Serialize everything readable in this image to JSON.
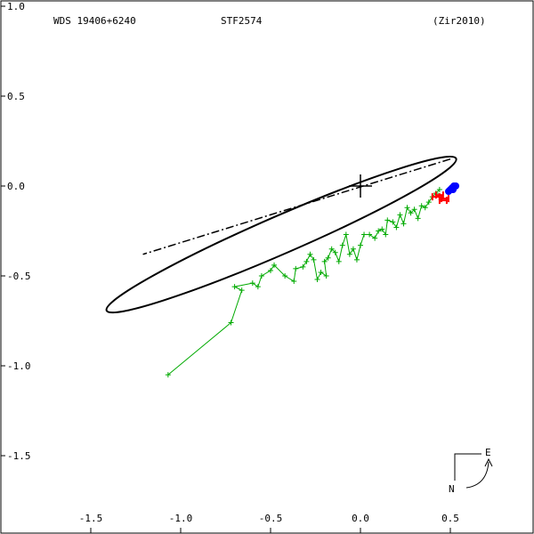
{
  "header": {
    "left": "WDS 19406+6240",
    "center": "STF2574",
    "right": "(Zir2010)"
  },
  "compass": {
    "east": "E",
    "north": "N"
  },
  "colors": {
    "orbit": "#000000",
    "observations": "#00aa00",
    "speckle": "#ff0000",
    "ephemeris": "#0000ff"
  },
  "chart_data": {
    "type": "scatter",
    "title": "",
    "xlabel": "",
    "ylabel": "",
    "xlim": [
      -1.95,
      0.95
    ],
    "ylim": [
      1.0,
      -1.95
    ],
    "xticks": [
      -1.5,
      -1.0,
      -0.5,
      0.0,
      0.5
    ],
    "xtick_labels": [
      "-1.5",
      "-1.0",
      "-0.5",
      "0.0",
      "0.5"
    ],
    "yticks": [
      -1.0,
      -0.5,
      0.0,
      0.5,
      1.0,
      1.5
    ],
    "ytick_labels": [
      "1.0",
      "0.5",
      "0.0",
      "-0.5",
      "-1.0",
      "-1.5"
    ],
    "grid": false,
    "orbit_ellipse": {
      "center": [
        -0.44,
        0.27
      ],
      "semi_major": 1.06,
      "semi_minor": 0.105,
      "rotation_deg": 23.5
    },
    "line_of_nodes": [
      [
        0.5,
        -0.15
      ],
      [
        -1.21,
        0.38
      ]
    ],
    "primary": [
      0.0,
      0.0
    ],
    "observations": [
      [
        -1.07,
        1.05
      ],
      [
        -0.72,
        0.76
      ],
      [
        -0.66,
        0.58
      ],
      [
        -0.7,
        0.56
      ],
      [
        -0.6,
        0.54
      ],
      [
        -0.57,
        0.56
      ],
      [
        -0.55,
        0.5
      ],
      [
        -0.5,
        0.47
      ],
      [
        -0.48,
        0.44
      ],
      [
        -0.42,
        0.5
      ],
      [
        -0.37,
        0.53
      ],
      [
        -0.36,
        0.46
      ],
      [
        -0.32,
        0.45
      ],
      [
        -0.3,
        0.42
      ],
      [
        -0.28,
        0.38
      ],
      [
        -0.26,
        0.41
      ],
      [
        -0.24,
        0.52
      ],
      [
        -0.22,
        0.48
      ],
      [
        -0.19,
        0.5
      ],
      [
        -0.2,
        0.42
      ],
      [
        -0.18,
        0.4
      ],
      [
        -0.16,
        0.35
      ],
      [
        -0.14,
        0.37
      ],
      [
        -0.12,
        0.42
      ],
      [
        -0.1,
        0.33
      ],
      [
        -0.08,
        0.27
      ],
      [
        -0.06,
        0.38
      ],
      [
        -0.04,
        0.35
      ],
      [
        -0.02,
        0.41
      ],
      [
        0.0,
        0.33
      ],
      [
        0.02,
        0.27
      ],
      [
        0.05,
        0.27
      ],
      [
        0.08,
        0.29
      ],
      [
        0.1,
        0.25
      ],
      [
        0.12,
        0.24
      ],
      [
        0.14,
        0.27
      ],
      [
        0.15,
        0.19
      ],
      [
        0.18,
        0.2
      ],
      [
        0.2,
        0.23
      ],
      [
        0.22,
        0.16
      ],
      [
        0.24,
        0.21
      ],
      [
        0.26,
        0.12
      ],
      [
        0.28,
        0.15
      ],
      [
        0.3,
        0.13
      ],
      [
        0.32,
        0.18
      ],
      [
        0.34,
        0.11
      ],
      [
        0.36,
        0.12
      ],
      [
        0.38,
        0.09
      ],
      [
        0.4,
        0.06
      ],
      [
        0.42,
        0.04
      ],
      [
        0.44,
        0.02
      ]
    ],
    "speckle": [
      [
        0.42,
        0.06
      ],
      [
        0.44,
        0.05
      ],
      [
        0.47,
        0.07
      ],
      [
        0.46,
        0.08
      ]
    ],
    "ephemeris": [
      [
        0.49,
        0.03
      ],
      [
        0.5,
        0.02
      ],
      [
        0.51,
        0.01
      ],
      [
        0.52,
        0.0
      ],
      [
        0.53,
        0.0
      ],
      [
        0.515,
        0.02
      ]
    ]
  }
}
